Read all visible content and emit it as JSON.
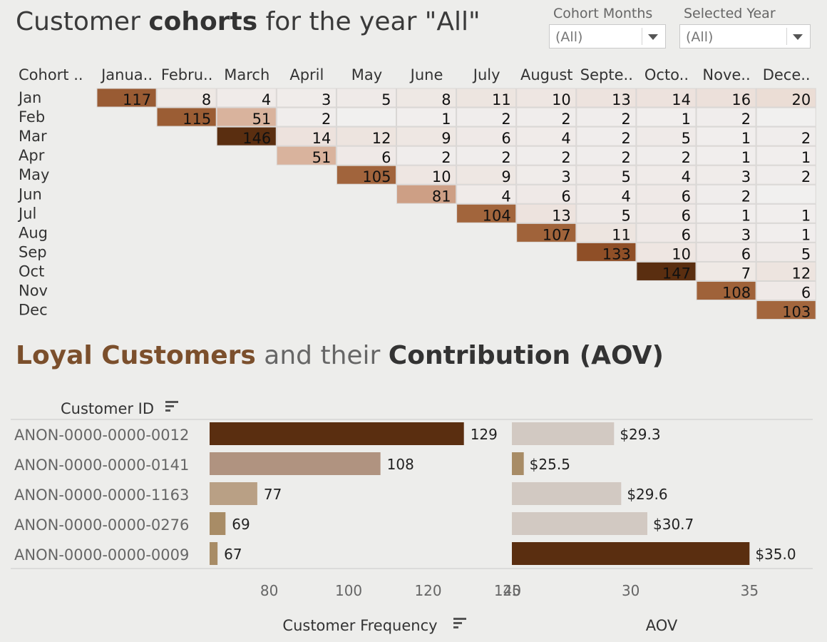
{
  "cohort_title": {
    "prefix": "Customer ",
    "bold": "cohorts",
    "suffix": " for the year \"All\""
  },
  "filters": [
    {
      "label": "Cohort Months",
      "value": "(All)"
    },
    {
      "label": "Selected Year",
      "value": "(All)"
    }
  ],
  "loyal_title": {
    "part1": "Loyal Customers",
    "part2": " and their ",
    "part3": "Contribution (AOV)"
  },
  "colors": {
    "dark": "#5a2e10",
    "mid": "#a86c43",
    "light": "#ddbba6",
    "pale": "#efe6e1",
    "bar_selected": "#5a2e10",
    "bar_mid": "#b09380",
    "bar_tan": "#b9a085",
    "bar_khaki": "#a88c66",
    "bar_grey": "#d2c9c2"
  },
  "chart_data": [
    {
      "type": "heatmap",
      "row_header": "Cohort ..",
      "columns": [
        "Janua..",
        "Febru..",
        "March",
        "April",
        "May",
        "June",
        "July",
        "August",
        "Septe..",
        "Octo..",
        "Nove..",
        "Dece.."
      ],
      "rows": [
        "Jan",
        "Feb",
        "Mar",
        "Apr",
        "May",
        "Jun",
        "Jul",
        "Aug",
        "Sep",
        "Oct",
        "Nov",
        "Dec"
      ],
      "values": [
        [
          117,
          8,
          4,
          3,
          5,
          8,
          11,
          10,
          13,
          14,
          16,
          20
        ],
        [
          null,
          115,
          51,
          2,
          null,
          1,
          2,
          2,
          2,
          1,
          2,
          null
        ],
        [
          null,
          null,
          146,
          14,
          12,
          9,
          6,
          4,
          2,
          5,
          1,
          2
        ],
        [
          null,
          null,
          null,
          51,
          6,
          2,
          2,
          2,
          2,
          2,
          1,
          1
        ],
        [
          null,
          null,
          null,
          null,
          105,
          10,
          9,
          3,
          5,
          4,
          3,
          2
        ],
        [
          null,
          null,
          null,
          null,
          null,
          81,
          4,
          6,
          4,
          6,
          2,
          null
        ],
        [
          null,
          null,
          null,
          null,
          null,
          null,
          104,
          13,
          5,
          6,
          1,
          1
        ],
        [
          null,
          null,
          null,
          null,
          null,
          null,
          null,
          107,
          11,
          6,
          3,
          1
        ],
        [
          null,
          null,
          null,
          null,
          null,
          null,
          null,
          null,
          133,
          10,
          6,
          5
        ],
        [
          null,
          null,
          null,
          null,
          null,
          null,
          null,
          null,
          null,
          147,
          7,
          12
        ],
        [
          null,
          null,
          null,
          null,
          null,
          null,
          null,
          null,
          null,
          null,
          108,
          6
        ],
        [
          null,
          null,
          null,
          null,
          null,
          null,
          null,
          null,
          null,
          null,
          null,
          103
        ]
      ]
    },
    {
      "type": "bar",
      "orientation": "horizontal",
      "category_header": "Customer ID",
      "categories": [
        "ANON-0000-0000-0012",
        "ANON-0000-0000-0141",
        "ANON-0000-0000-1163",
        "ANON-0000-0000-0276",
        "ANON-0000-0000-0009"
      ],
      "xlabel": "Customer Frequency",
      "xlim": [
        65,
        140
      ],
      "xticks": [
        80,
        100,
        120,
        140
      ],
      "values": [
        129,
        108,
        77,
        69,
        67
      ],
      "labels": [
        "129",
        "108",
        "77",
        "69",
        "67"
      ]
    },
    {
      "type": "bar",
      "orientation": "horizontal",
      "xlabel": "AOV",
      "xlim": [
        25,
        37
      ],
      "xticks": [
        25,
        30,
        35
      ],
      "values": [
        29.3,
        25.5,
        29.6,
        30.7,
        35.0
      ],
      "labels": [
        "$29.3",
        "$25.5",
        "$29.6",
        "$30.7",
        "$35.0"
      ]
    }
  ]
}
